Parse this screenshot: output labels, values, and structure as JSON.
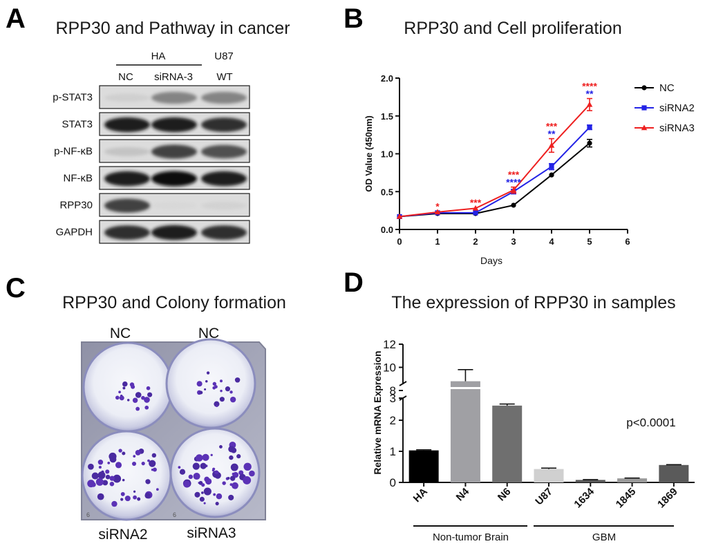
{
  "panels": {
    "A": {
      "letter": "A",
      "title": "RPP30 and Pathway in cancer",
      "group_labels": [
        "HA",
        "U87"
      ],
      "lane_labels": [
        "NC",
        "siRNA-3",
        "WT"
      ],
      "blots": [
        {
          "label": "p-STAT3",
          "intensity": [
            0.15,
            0.6,
            0.6
          ]
        },
        {
          "label": "STAT3",
          "intensity": [
            0.95,
            0.95,
            0.9
          ]
        },
        {
          "label": "p-NF-κB",
          "intensity": [
            0.25,
            0.85,
            0.8
          ]
        },
        {
          "label": "NF-κB",
          "intensity": [
            0.95,
            1.0,
            0.95
          ]
        },
        {
          "label": "RPP30",
          "intensity": [
            0.85,
            0.05,
            0.12
          ]
        },
        {
          "label": "GAPDH",
          "intensity": [
            0.9,
            0.95,
            0.9
          ]
        }
      ]
    },
    "B": {
      "letter": "B",
      "title": "RPP30 and Cell proliferation"
    },
    "C": {
      "letter": "C",
      "title": "RPP30 and Colony formation",
      "plate_labels": [
        "NC",
        "NC",
        "siRNA2",
        "siRNA3"
      ],
      "plate_marks": [
        "6",
        "6"
      ],
      "colony_density": [
        0.3,
        0.3,
        0.75,
        0.95
      ]
    },
    "D": {
      "letter": "D",
      "title": "The expression of RPP30 in samples",
      "pvalue": "p<0.0001",
      "groups": [
        "Non-tumor Brain",
        "GBM"
      ]
    }
  },
  "chart_data": [
    {
      "type": "line",
      "title": "RPP30 and Cell proliferation",
      "xlabel": "Days",
      "ylabel": "OD Value (450nm)",
      "xlim": [
        0,
        6
      ],
      "ylim": [
        0,
        2.0
      ],
      "xticks": [
        "0",
        "1",
        "2",
        "3",
        "4",
        "5",
        "6"
      ],
      "yticks": [
        "0.0",
        "0.5",
        "1.0",
        "1.5",
        "2.0"
      ],
      "legend_position": "right",
      "x": [
        0,
        1,
        2,
        3,
        4,
        5
      ],
      "series": [
        {
          "name": "NC",
          "color": "#000000",
          "marker": "circle",
          "values": [
            0.17,
            0.21,
            0.21,
            0.32,
            0.72,
            1.14
          ],
          "errors": [
            0.01,
            0.01,
            0.01,
            0.01,
            0.01,
            0.05
          ]
        },
        {
          "name": "siRNA2",
          "color": "#2323e6",
          "marker": "square",
          "values": [
            0.17,
            0.22,
            0.22,
            0.5,
            0.83,
            1.35
          ],
          "errors": [
            0.01,
            0.01,
            0.01,
            0.03,
            0.04,
            0.03
          ]
        },
        {
          "name": "siRNA3",
          "color": "#ee2020",
          "marker": "triangle",
          "values": [
            0.17,
            0.23,
            0.28,
            0.52,
            1.11,
            1.65
          ],
          "errors": [
            0.01,
            0.01,
            0.01,
            0.04,
            0.09,
            0.08
          ]
        }
      ],
      "annotations": [
        {
          "x": 1,
          "lines": [
            {
              "text": "*",
              "color": "#ee2020"
            }
          ]
        },
        {
          "x": 2,
          "lines": [
            {
              "text": "***",
              "color": "#ee2020"
            }
          ]
        },
        {
          "x": 3,
          "lines": [
            {
              "text": "***",
              "color": "#ee2020"
            },
            {
              "text": "****",
              "color": "#2323e6"
            }
          ]
        },
        {
          "x": 4,
          "lines": [
            {
              "text": "***",
              "color": "#ee2020"
            },
            {
              "text": "**",
              "color": "#2323e6"
            }
          ]
        },
        {
          "x": 5,
          "lines": [
            {
              "text": "****",
              "color": "#ee2020"
            },
            {
              "text": "**",
              "color": "#2323e6"
            }
          ]
        }
      ]
    },
    {
      "type": "bar",
      "title": "The expression of RPP30 in samples",
      "ylabel": "Relative mRNA Expression",
      "categories": [
        "HA",
        "N4",
        "N6",
        "U87",
        "1634",
        "1845",
        "1869"
      ],
      "values": [
        1.03,
        8.8,
        2.47,
        0.43,
        0.08,
        0.13,
        0.56
      ],
      "errors": [
        0.02,
        1.0,
        0.05,
        0.03,
        0.01,
        0.01,
        0.01
      ],
      "colors": [
        "#000000",
        "#a0a0a4",
        "#6f6f6f",
        "#d0d0d0",
        "#595959",
        "#9a9a9a",
        "#5a5a5a"
      ],
      "broken_axis": true,
      "lower_ylim": [
        0,
        3
      ],
      "upper_ylim": [
        8,
        12
      ],
      "lower_yticks": [
        "0",
        "1",
        "2",
        "3"
      ],
      "upper_yticks": [
        "8",
        "10",
        "12"
      ],
      "groups": [
        {
          "label": "Non-tumor Brain",
          "categories": [
            "HA",
            "N4",
            "N6"
          ]
        },
        {
          "label": "GBM",
          "categories": [
            "U87",
            "1634",
            "1845",
            "1869"
          ]
        }
      ],
      "annotation": "p<0.0001"
    }
  ]
}
